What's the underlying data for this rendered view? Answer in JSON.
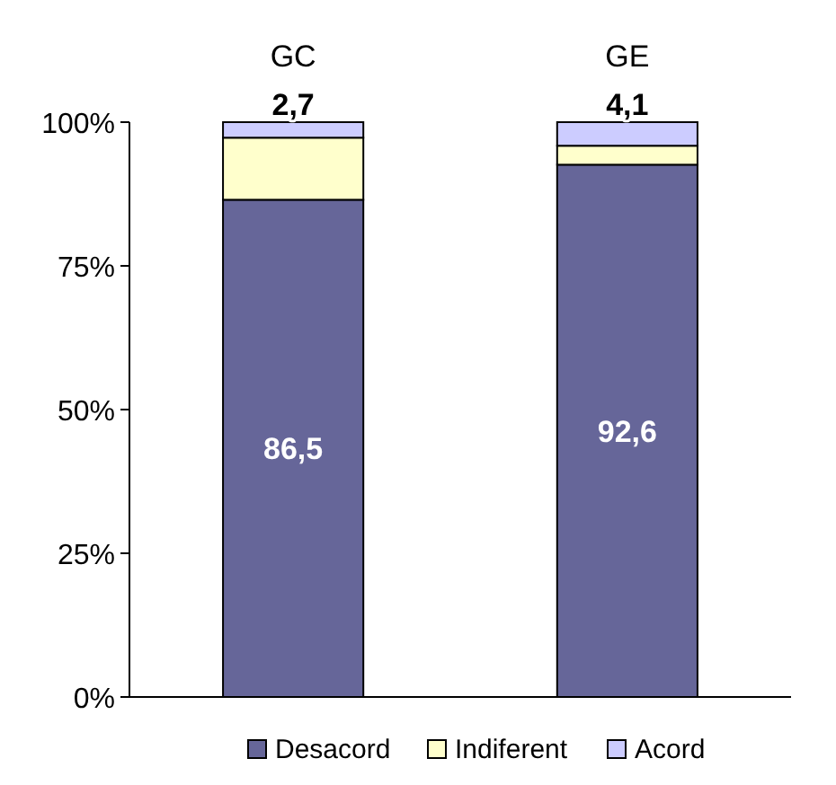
{
  "chart_data": {
    "type": "bar",
    "stacked": true,
    "categories": [
      "GC",
      "GE"
    ],
    "series": [
      {
        "name": "Desacord",
        "color": "#666699",
        "values": [
          86.5,
          92.6
        ],
        "value_labels": [
          "86,5",
          "92,6"
        ]
      },
      {
        "name": "Indiferent",
        "color": "#ffffcc",
        "values": [
          10.8,
          3.3
        ]
      },
      {
        "name": "Acord",
        "color": "#ccccff",
        "values": [
          2.7,
          4.1
        ],
        "value_labels": [
          "2,7",
          "4,1"
        ]
      }
    ],
    "ylim": [
      0,
      100
    ],
    "yticks": [
      {
        "value": 0,
        "label": "0%"
      },
      {
        "value": 25,
        "label": "25%"
      },
      {
        "value": 50,
        "label": "50%"
      },
      {
        "value": 75,
        "label": "75%"
      },
      {
        "value": 100,
        "label": "100%"
      }
    ],
    "legend": "bottom",
    "grid": false
  }
}
